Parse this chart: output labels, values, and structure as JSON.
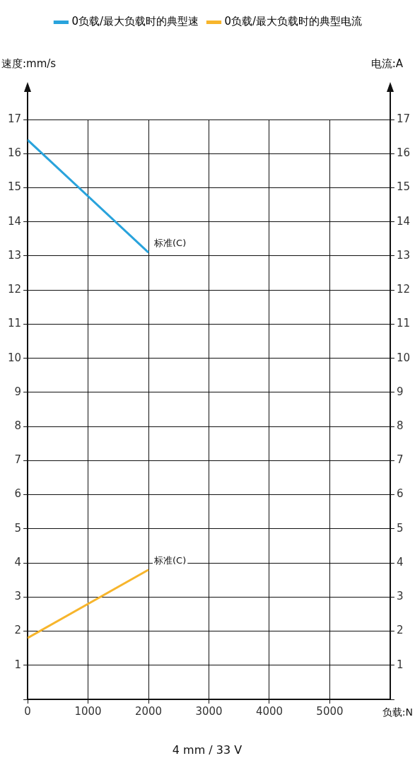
{
  "chart_data": {
    "type": "line",
    "xlabel": "负载:N",
    "ylabel": "速度:mm/s",
    "y2label": "电流:A",
    "x": [
      0,
      2000
    ],
    "series": [
      {
        "name": "0负载/最大负载时的典型速",
        "color": "#29a3dc",
        "values": [
          16.4,
          13.1
        ]
      },
      {
        "name": "0负载/最大负载时的典型电流",
        "color": "#f7b52c",
        "values": [
          1.8,
          3.8
        ],
        "axis": "y2"
      }
    ],
    "xlim": [
      0,
      6000
    ],
    "xticks": [
      0,
      1000,
      2000,
      3000,
      4000,
      5000
    ],
    "ylim": [
      0,
      17
    ],
    "yticks": [
      {
        "value": 0,
        "label": null
      },
      1,
      2,
      3,
      4,
      5,
      6,
      7,
      8,
      9,
      10,
      11,
      12,
      13,
      14,
      15,
      16,
      17
    ],
    "y2lim": [
      0,
      17
    ],
    "y2ticks": [
      {
        "value": 0,
        "label": null
      },
      1,
      2,
      3,
      4,
      5,
      6,
      7,
      8,
      9,
      10,
      11,
      12,
      13,
      14,
      15,
      16,
      17
    ],
    "annotations": [
      {
        "text": "标准(C)",
        "x": 2000,
        "y": 13.1
      },
      {
        "text": "标准(C)",
        "x": 2000,
        "y": 3.8
      },
      "4 mm / 33 V"
    ],
    "grid": true,
    "legend": "top",
    "marker": "none",
    "line_style": "solid"
  }
}
